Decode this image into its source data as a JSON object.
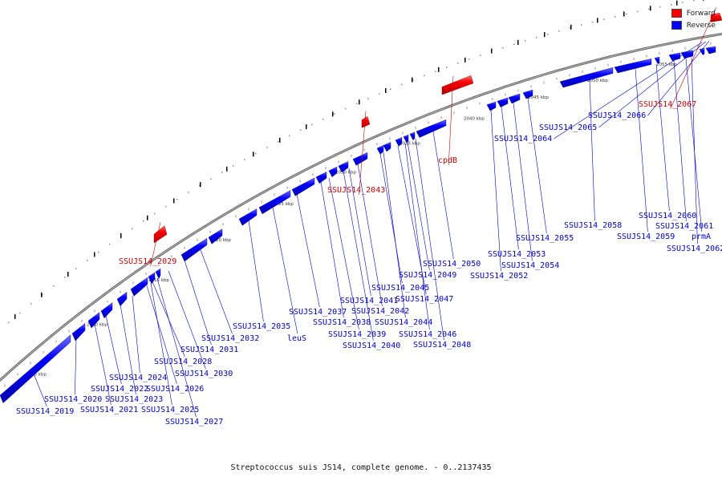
{
  "legend": {
    "forward": {
      "label": "Forward",
      "color": "#ff0000"
    },
    "reverse": {
      "label": "Reverse",
      "color": "#0000ff"
    }
  },
  "caption": "Streptococcus suis JS14, complete genome. - 0..2137435",
  "scale_ticks": [
    "2005 kbp",
    "2010 kbp",
    "2015 kbp",
    "2020 kbp",
    "2025 kbp",
    "2030 kbp",
    "2035 kbp",
    "2040 kbp",
    "2045 kbp",
    "2050 kbp",
    "2055 kbp"
  ],
  "forward_genes": [
    "SSUJS14_2029",
    "SSUJS14_2043",
    "cpdB",
    "SSUJS14_2067"
  ],
  "reverse_genes": [
    "SSUJS14_2019",
    "SSUJS14_2020",
    "SSUJS14_2021",
    "SSUJS14_2022",
    "SSUJS14_2023",
    "SSUJS14_2024",
    "SSUJS14_2025",
    "SSUJS14_2026",
    "SSUJS14_2027",
    "SSUJS14_2028",
    "SSUJS14_2030",
    "SSUJS14_2031",
    "SSUJS14_2032",
    "SSUJS14_2035",
    "leuS",
    "SSUJS14_2037",
    "SSUJS14_2038",
    "SSUJS14_2039",
    "SSUJS14_2040",
    "SSUJS14_2041",
    "SSUJS14_2042",
    "SSUJS14_2044",
    "SSUJS14_2045",
    "SSUJS14_2046",
    "SSUJS14_2047",
    "SSUJS14_2048",
    "SSUJS14_2049",
    "SSUJS14_2050",
    "SSUJS14_2052",
    "SSUJS14_2053",
    "SSUJS14_2054",
    "SSUJS14_2055",
    "SSUJS14_2058",
    "SSUJS14_2059",
    "SSUJS14_2060",
    "SSUJS14_2061",
    "prmA",
    "SSUJS14_2062",
    "SSUJS14_2064",
    "SSUJS14_2065",
    "SSUJS14_2066"
  ]
}
